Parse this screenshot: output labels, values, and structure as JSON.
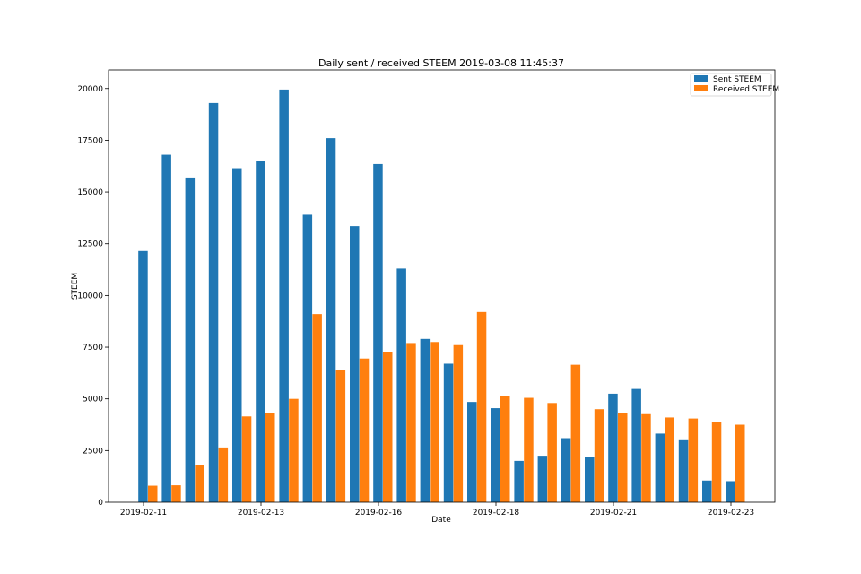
{
  "chart_data": {
    "type": "bar",
    "title": "Daily sent / received STEEM 2019-03-08 11:45:37",
    "xlabel": "Date",
    "ylabel": "STEEM",
    "ylim": [
      0,
      20900
    ],
    "yticks": [
      0,
      2500,
      5000,
      7500,
      10000,
      12500,
      15000,
      17500,
      20000
    ],
    "x_tick_labels": [
      {
        "index": 0,
        "label": "2019-02-11"
      },
      {
        "index": 5,
        "label": "2019-02-13"
      },
      {
        "index": 10,
        "label": "2019-02-16"
      },
      {
        "index": 15,
        "label": "2019-02-18"
      },
      {
        "index": 20,
        "label": "2019-02-21"
      },
      {
        "index": 25,
        "label": "2019-02-23"
      }
    ],
    "legend_position": "top-right",
    "colors": {
      "sent": "#1f77b4",
      "received": "#ff7f0e"
    },
    "series": [
      {
        "name": "Sent STEEM",
        "values": [
          12150,
          16800,
          15700,
          19300,
          16150,
          16500,
          19950,
          13900,
          17600,
          13350,
          16350,
          11300,
          7900,
          6700,
          4850,
          4550,
          2000,
          2250,
          3100,
          2200,
          5250,
          5480,
          3320,
          3000,
          1050,
          1020
        ]
      },
      {
        "name": "Received STEEM",
        "values": [
          800,
          820,
          1800,
          2650,
          4150,
          4300,
          5000,
          9100,
          6400,
          6950,
          7250,
          7700,
          7750,
          7600,
          9200,
          5150,
          5050,
          4800,
          6650,
          4500,
          4330,
          4260,
          4100,
          4050,
          3900,
          3750
        ]
      }
    ]
  }
}
